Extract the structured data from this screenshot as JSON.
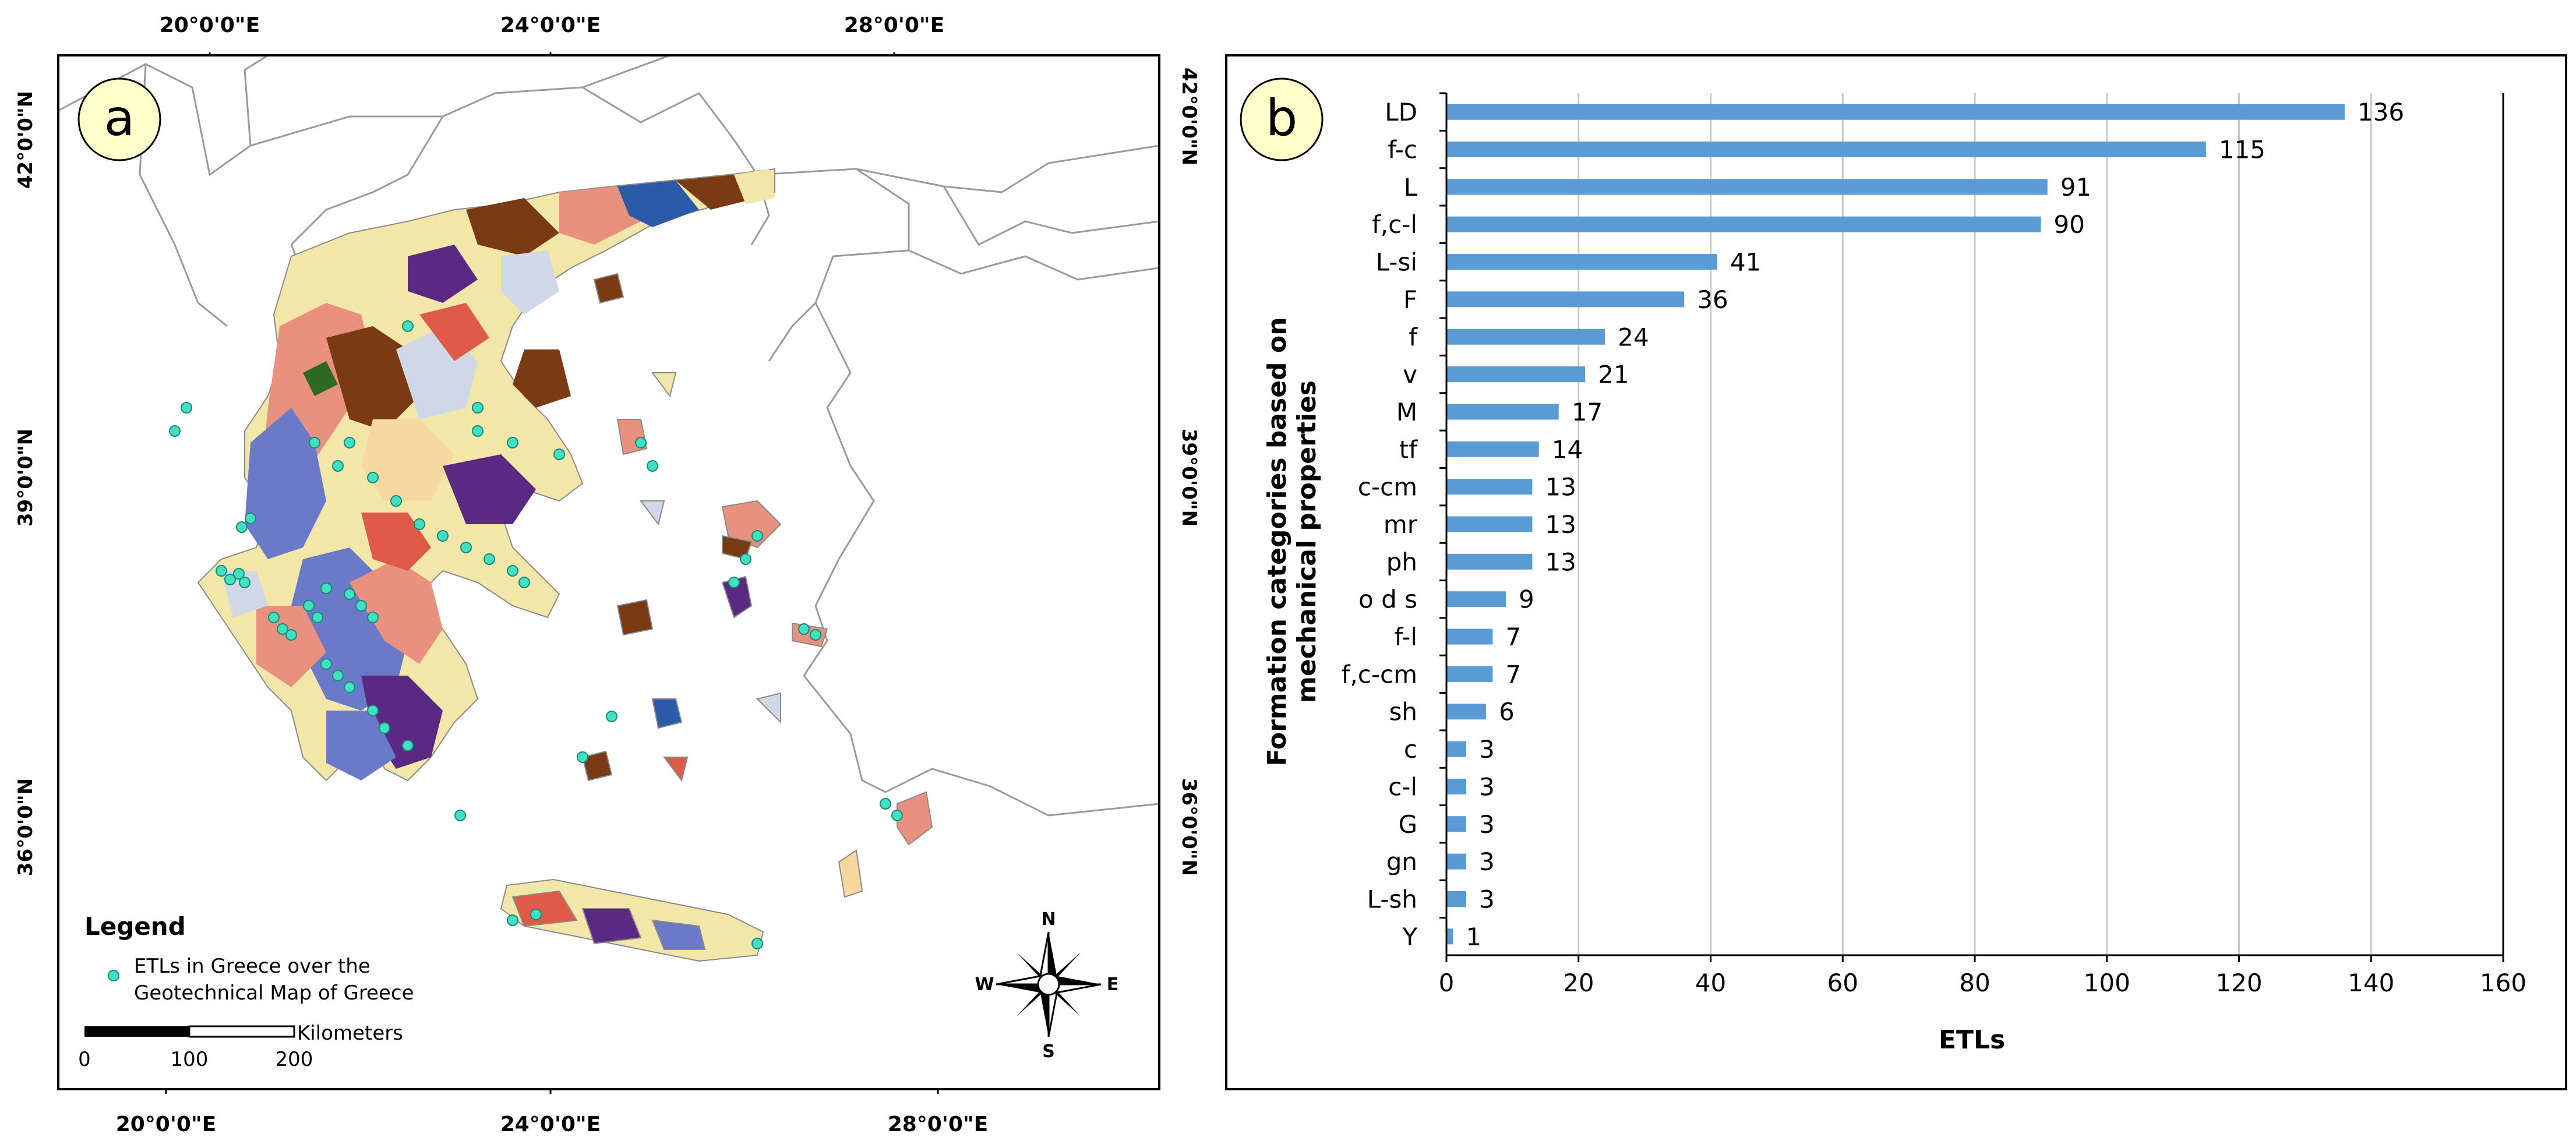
{
  "panel_a": {
    "label": "a",
    "top_ticks": [
      "20°0'0\"E",
      "24°0'0\"E",
      "28°0'0\"E"
    ],
    "bottom_ticks": [
      "20°0'0\"E",
      "24°0'0\"E",
      "28°0'0\"E"
    ],
    "left_ticks": [
      "42°0'0\"N",
      "39°0'0\"N",
      "36°0'0\"N"
    ],
    "right_ticks": [
      "42°0'0\"N",
      "39°0'0\"N",
      "36°0'0\"N"
    ],
    "legend": {
      "title": "Legend",
      "entry_line1": "ETLs in Greece over the",
      "entry_line2": "Geotechnical Map of Greece",
      "marker_color": "#40e0c0"
    },
    "scale_bar": {
      "unit_label": "Kilometers",
      "ticks": [
        "0",
        "100",
        "200"
      ]
    },
    "compass": {
      "n": "N",
      "s": "S",
      "e": "E",
      "w": "W"
    },
    "colors": {
      "land_outline": "#9a9a9a",
      "geology": [
        "#f2e6a8",
        "#e8917f",
        "#6a7ac9",
        "#7a3a14",
        "#5a2a82",
        "#2f6a22",
        "#cfd8e6",
        "#e05a4a",
        "#2a5aa8",
        "#f7d9a0"
      ],
      "etl": "#40e0c0"
    }
  },
  "chart_data": {
    "type": "bar",
    "orientation": "horizontal",
    "panel_label": "b",
    "title": "",
    "xlabel": "ETLs",
    "ylabel_line1": "Formation categories based on",
    "ylabel_line2": "mechanical properties",
    "xlim": [
      0,
      160
    ],
    "xticks": [
      0,
      20,
      40,
      60,
      80,
      100,
      120,
      140,
      160
    ],
    "grid": "vertical",
    "bar_color": "#5b9bd5",
    "categories": [
      "LD",
      "f-c",
      "L",
      "f,c-l",
      "L-si",
      "F",
      "f",
      "v",
      "M",
      "tf",
      "c-cm",
      "mr",
      "ph",
      "o d s",
      "f-l",
      "f,c-cm",
      "sh",
      "c",
      "c-l",
      "G",
      "gn",
      "L-sh",
      "Y"
    ],
    "values": [
      136,
      115,
      91,
      90,
      41,
      36,
      24,
      21,
      17,
      14,
      13,
      13,
      13,
      9,
      7,
      7,
      6,
      3,
      3,
      3,
      3,
      3,
      1
    ]
  }
}
